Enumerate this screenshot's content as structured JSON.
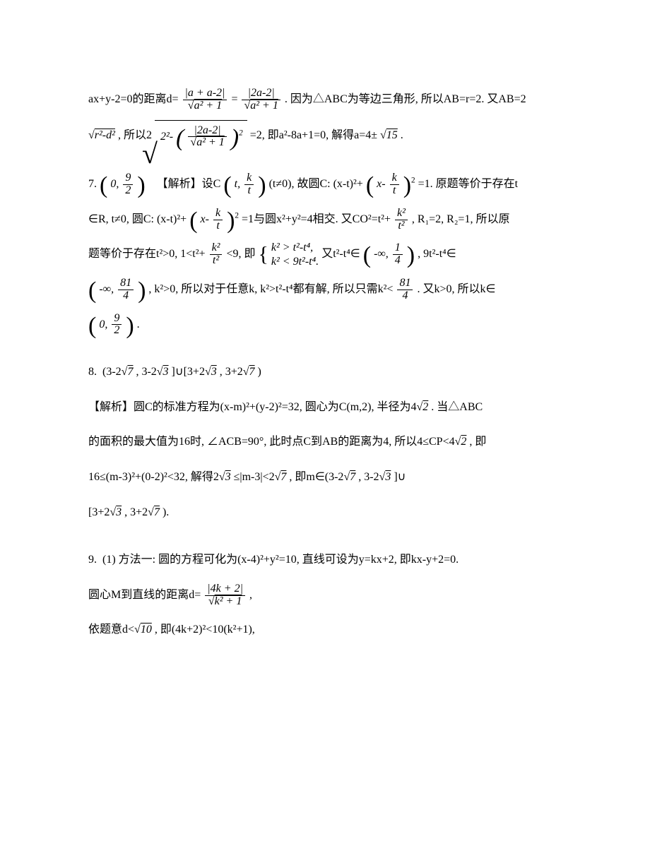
{
  "p1a": "ax+y-2=0的距离d=",
  "p1b": ". 因为△ABC为等边三角形, 所以AB=r=2. 又AB=2",
  "frac1n": "|a + a-2|",
  "frac1d": "a² + 1",
  "frac2n": "|2a-2|",
  "frac2d": "a² + 1",
  "p2a": ", 所以2",
  "p2b": "=2, 即a²-8a+1=0, 解得a=4±",
  "p2c": ".",
  "rmd": "r²-d²",
  "bigroot_inner_2": "2²-",
  "bigroot_inner_frac_n": "|2a-2|",
  "bigroot_inner_frac_d": "a² + 1",
  "sqrt15": "15",
  "q7num": "7.",
  "q7a": "【解析】设C",
  "q7b": "(t≠0), 故圆C: (x-t)²+",
  "q7c": "=1. 原题等价于存在t",
  "q7_interval_09_2_l": "0,",
  "q7_interval_09_2_r": "9",
  "q7_interval_09_2_r2": "2",
  "q7_tkovert_t": "t,",
  "q7_tkovert_k": "k",
  "q7_tkovert_t2": "t",
  "q7_xmk_x": "x-",
  "q7_xmk_k": "k",
  "q7_xmk_t": "t",
  "p3a": "∈R, t≠0, 圆C: (x-t)²+",
  "p3b": "=1与圆x²+y²=4相交. 又CO²=t²+",
  "p3c": ", R₁=2, R₂=1, 所以原",
  "k2_t2_n": "k²",
  "k2_t2_d": "t²",
  "p4a": "题等价于存在t²>0, 1<t²+",
  "p4b": "<9, 即",
  "p4c": "又t²-t⁴∈",
  "p4d": ", 9t²-t⁴∈",
  "cases1": "k² > t²-t⁴,",
  "cases2": "k² < 9t²-t⁴.",
  "neginf14_a": "-∞,",
  "neginf14_b": "1",
  "neginf14_c": "4",
  "p5a": ", k²>0, 所以对于任意k, k²>t²-t⁴都有解, 所以只需k²<",
  "p5b": ". 又k>0, 所以k∈",
  "neginf814_a": "-∞,",
  "neginf814_b": "81",
  "neginf814_c": "4",
  "f814_b": "81",
  "f814_c": "4",
  "p6": ".",
  "q8num": "8.",
  "q8a": "(3-2",
  "q8b": ", 3-2",
  "q8c": "]∪[3+2",
  "q8d": ", 3+2",
  "q8e": ")",
  "sqrt7": "7",
  "sqrt3": "3",
  "sqrt2": "2",
  "p8a": "【解析】圆C的标准方程为(x-m)²+(y-2)²=32, 圆心为C(m,2), 半径为4",
  "p8b": ". 当△ABC",
  "p8c": "的面积的最大值为16时, ∠ACB=90°, 此时点C到AB的距离为4, 所以4≤CP<4",
  "p8d": ", 即",
  "p8e": "16≤(m-3)²+(0-2)²<32, 解得2",
  "p8f": "≤|m-3|<2",
  "p8g": ", 即m∈(3-2",
  "p8h": ", 3-2",
  "p8i": "]∪",
  "p8j": "[3+2",
  "p8k": ", 3+2",
  "p8l": ").",
  "q9num": "9.",
  "q9a": "(1) 方法一: 圆的方程可化为(x-4)²+y²=10, 直线可设为y=kx+2, 即kx-y+2=0.",
  "p9a": "圆心M到直线的距离d=",
  "p9b": ",",
  "frac9n": "|4k + 2|",
  "frac9d": "k² + 1",
  "p10a": "依题意d<",
  "p10b": ", 即(4k+2)²<10(k²+1),",
  "sqrt10": "10"
}
